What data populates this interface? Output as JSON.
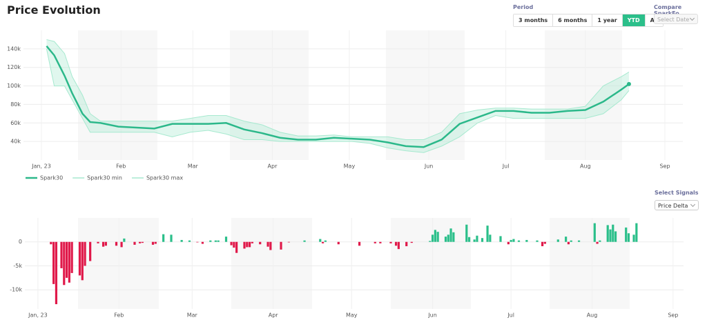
{
  "header": {
    "title": "Price Evolution"
  },
  "period": {
    "label": "Period",
    "options": [
      "3 months",
      "6 months",
      "1 year",
      "YTD",
      "All"
    ],
    "active_index": 3
  },
  "compare": {
    "label": "Compare SparkFo",
    "placeholder": "Select Date"
  },
  "signals": {
    "label": "Select Signals",
    "value": "Price Delta"
  },
  "chart_data": [
    {
      "type": "line",
      "x": [
        2,
        5,
        9,
        12,
        16,
        19,
        23,
        30,
        37,
        44,
        51,
        58,
        65,
        72,
        79,
        86,
        93,
        100,
        107,
        114,
        121,
        128,
        135,
        142,
        149,
        156,
        163,
        170,
        177,
        184,
        191,
        198,
        205,
        212,
        219,
        226,
        229
      ],
      "xlim": [
        -7,
        250
      ],
      "xticks": [
        {
          "value": 0,
          "label": "Jan, 23"
        },
        {
          "value": 31,
          "label": "Feb"
        },
        {
          "value": 59,
          "label": "Mar"
        },
        {
          "value": 90,
          "label": "Apr"
        },
        {
          "value": 120,
          "label": "May"
        },
        {
          "value": 151,
          "label": "Jun"
        },
        {
          "value": 181,
          "label": "Jul"
        },
        {
          "value": 212,
          "label": "Aug"
        },
        {
          "value": 243,
          "label": "Sep"
        }
      ],
      "ylim": [
        20000,
        160000
      ],
      "yticks": [
        {
          "value": 40000,
          "label": "40k"
        },
        {
          "value": 60000,
          "label": "60k"
        },
        {
          "value": 80000,
          "label": "80k"
        },
        {
          "value": 100000,
          "label": "100k"
        },
        {
          "value": 120000,
          "label": "120k"
        },
        {
          "value": 140000,
          "label": "140k"
        }
      ],
      "grid": true,
      "series": [
        {
          "name": "Spark30",
          "color": "#2bb88a",
          "values": [
            143000,
            133000,
            111000,
            92000,
            70000,
            61000,
            60000,
            56000,
            55000,
            54000,
            59000,
            59000,
            59000,
            60000,
            53000,
            49000,
            44000,
            42000,
            42000,
            44000,
            43000,
            42000,
            39000,
            35000,
            34000,
            42000,
            59000,
            66000,
            73000,
            73000,
            71000,
            71000,
            73000,
            74000,
            83000,
            96000,
            102000
          ]
        },
        {
          "name": "Spark30 min",
          "color": "#a6e9cf",
          "values": [
            140000,
            100000,
            100000,
            85000,
            65000,
            50000,
            50000,
            50000,
            50000,
            50000,
            45000,
            50000,
            52000,
            48000,
            42000,
            42000,
            40000,
            40000,
            40000,
            40000,
            40000,
            38000,
            33000,
            30000,
            28000,
            35000,
            45000,
            60000,
            68000,
            65000,
            65000,
            65000,
            65000,
            65000,
            70000,
            85000,
            95000
          ]
        },
        {
          "name": "Spark30 max",
          "color": "#a6e9cf",
          "values": [
            150000,
            148000,
            135000,
            110000,
            90000,
            70000,
            62000,
            62000,
            62000,
            62000,
            62000,
            65000,
            68000,
            68000,
            62000,
            58000,
            50000,
            46000,
            46000,
            47000,
            45000,
            45000,
            45000,
            42000,
            42000,
            50000,
            70000,
            74000,
            76000,
            76000,
            75000,
            75000,
            75000,
            78000,
            100000,
            110000,
            115000
          ]
        }
      ]
    },
    {
      "type": "bar",
      "x": [
        5,
        6,
        7,
        9,
        10,
        11,
        12,
        13,
        16,
        17,
        18,
        20,
        23,
        25,
        26,
        30,
        32,
        33,
        37,
        39,
        40,
        44,
        45,
        48,
        51,
        55,
        58,
        61,
        63,
        66,
        68,
        69,
        72,
        74,
        75,
        76,
        79,
        80,
        81,
        82,
        85,
        88,
        89,
        93,
        96,
        102,
        108,
        109,
        110,
        115,
        123,
        129,
        131,
        135,
        137,
        138,
        141,
        143,
        150,
        151,
        152,
        153,
        156,
        157,
        158,
        159,
        164,
        165,
        167,
        168,
        170,
        172,
        173,
        177,
        180,
        181,
        182,
        184,
        187,
        191,
        193,
        194,
        199,
        202,
        203,
        204,
        207,
        213,
        214,
        215,
        218,
        219,
        220,
        221,
        225,
        226,
        228,
        229
      ],
      "values": [
        -500,
        -8800,
        -13000,
        -5500,
        -9000,
        -7500,
        -8500,
        -6500,
        -7000,
        -8000,
        -5000,
        -4000,
        -300,
        -1000,
        -800,
        -800,
        -1100,
        700,
        -600,
        -300,
        -200,
        -600,
        -400,
        1600,
        1500,
        400,
        300,
        -100,
        -400,
        300,
        300,
        300,
        1100,
        -700,
        -1200,
        -2300,
        -1400,
        -1100,
        -1100,
        -300,
        -500,
        -1000,
        -1700,
        -1600,
        -100,
        300,
        600,
        -300,
        300,
        -500,
        -800,
        -300,
        -300,
        -300,
        -800,
        -1500,
        -900,
        -200,
        200,
        1500,
        2500,
        2100,
        1100,
        1500,
        2800,
        2000,
        3600,
        1000,
        500,
        1300,
        800,
        3400,
        1500,
        1200,
        -500,
        400,
        600,
        300,
        400,
        300,
        -900,
        -400,
        500,
        1100,
        -500,
        300,
        300,
        3900,
        -400,
        300,
        3500,
        2600,
        3600,
        2200,
        3000,
        1800,
        1500,
        3900
      ],
      "positive_color": "#2bbf8a",
      "negative_color": "#e0194a",
      "xlim": [
        -5,
        247
      ],
      "xticks": [
        {
          "value": 0,
          "label": "Jan, 23"
        },
        {
          "value": 31,
          "label": "Feb"
        },
        {
          "value": 59,
          "label": "Mar"
        },
        {
          "value": 90,
          "label": "Apr"
        },
        {
          "value": 120,
          "label": "May"
        },
        {
          "value": 151,
          "label": "Jun"
        },
        {
          "value": 181,
          "label": "Jul"
        },
        {
          "value": 212,
          "label": "Aug"
        },
        {
          "value": 243,
          "label": "Sep"
        }
      ],
      "ylim": [
        -14000,
        5000
      ],
      "yticks": [
        {
          "value": -10000,
          "label": "-10k"
        },
        {
          "value": -5000,
          "label": "-5k"
        },
        0
      ],
      "grid": true
    }
  ]
}
